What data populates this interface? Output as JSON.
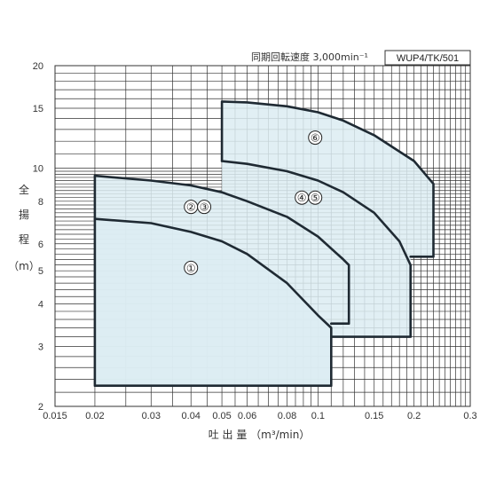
{
  "header": {
    "speed_text": "同期回転速度 3,000min⁻¹",
    "model": "WUP4/TK/501"
  },
  "colors": {
    "fill": "#dcecf2",
    "curve": "#1f2a33",
    "grid": "#333333"
  },
  "chart_data": {
    "type": "area",
    "x_scale": "log",
    "y_scale": "log",
    "xlim": [
      0.015,
      0.3
    ],
    "ylim": [
      2,
      20
    ],
    "xlabel": "吐 出 量 （m³/min）",
    "ylabel": [
      "全",
      "揚",
      "程",
      "（m）"
    ],
    "x_ticks": [
      {
        "value": 0.015,
        "label": "0.015"
      },
      {
        "value": 0.02,
        "label": "0.02"
      },
      {
        "value": 0.03,
        "label": "0.03"
      },
      {
        "value": 0.04,
        "label": "0.04"
      },
      {
        "value": 0.05,
        "label": "0.05"
      },
      {
        "value": 0.06,
        "label": "0.06"
      },
      {
        "value": 0.08,
        "label": "0.08"
      },
      {
        "value": 0.1,
        "label": "0.1"
      },
      {
        "value": 0.15,
        "label": "0.15"
      },
      {
        "value": 0.2,
        "label": "0.2"
      },
      {
        "value": 0.3,
        "label": "0.3"
      }
    ],
    "y_ticks": [
      {
        "value": 2,
        "label": "2"
      },
      {
        "value": 3,
        "label": "3"
      },
      {
        "value": 4,
        "label": "4"
      },
      {
        "value": 5,
        "label": "5"
      },
      {
        "value": 6,
        "label": "6"
      },
      {
        "value": 8,
        "label": "8"
      },
      {
        "value": 10,
        "label": "10"
      },
      {
        "value": 15,
        "label": "15"
      },
      {
        "value": 20,
        "label": "20"
      }
    ],
    "regions": [
      {
        "label": "①",
        "points": [
          [
            0.02,
            2.3
          ],
          [
            0.02,
            7.1
          ],
          [
            0.03,
            6.9
          ],
          [
            0.04,
            6.5
          ],
          [
            0.05,
            6.1
          ],
          [
            0.06,
            5.6
          ],
          [
            0.08,
            4.6
          ],
          [
            0.1,
            3.7
          ],
          [
            0.11,
            3.4
          ],
          [
            0.11,
            2.3
          ]
        ]
      },
      {
        "label": "②③",
        "points": [
          [
            0.02,
            2.3
          ],
          [
            0.02,
            9.5
          ],
          [
            0.03,
            9.2
          ],
          [
            0.04,
            8.9
          ],
          [
            0.05,
            8.5
          ],
          [
            0.06,
            8.0
          ],
          [
            0.08,
            7.2
          ],
          [
            0.1,
            6.3
          ],
          [
            0.12,
            5.4
          ],
          [
            0.125,
            5.2
          ],
          [
            0.125,
            3.5
          ],
          [
            0.11,
            3.5
          ],
          [
            0.11,
            2.3
          ]
        ]
      },
      {
        "label": "④⑤",
        "points": [
          [
            0.05,
            8.5
          ],
          [
            0.05,
            10.5
          ],
          [
            0.06,
            10.3
          ],
          [
            0.08,
            9.8
          ],
          [
            0.1,
            9.2
          ],
          [
            0.12,
            8.5
          ],
          [
            0.15,
            7.4
          ],
          [
            0.18,
            6.1
          ],
          [
            0.195,
            5.2
          ],
          [
            0.195,
            3.2
          ],
          [
            0.11,
            3.2
          ],
          [
            0.11,
            3.5
          ],
          [
            0.125,
            3.5
          ],
          [
            0.125,
            5.2
          ],
          [
            0.12,
            5.4
          ],
          [
            0.1,
            6.3
          ],
          [
            0.08,
            7.2
          ],
          [
            0.06,
            8.0
          ]
        ]
      },
      {
        "label": "⑥",
        "points": [
          [
            0.05,
            10.5
          ],
          [
            0.05,
            15.7
          ],
          [
            0.06,
            15.6
          ],
          [
            0.08,
            15.2
          ],
          [
            0.1,
            14.6
          ],
          [
            0.12,
            13.8
          ],
          [
            0.15,
            12.5
          ],
          [
            0.2,
            10.5
          ],
          [
            0.23,
            9.0
          ],
          [
            0.23,
            5.5
          ],
          [
            0.195,
            5.5
          ],
          [
            0.195,
            5.2
          ],
          [
            0.18,
            6.1
          ],
          [
            0.15,
            7.4
          ],
          [
            0.12,
            8.5
          ],
          [
            0.1,
            9.2
          ],
          [
            0.08,
            9.8
          ],
          [
            0.06,
            10.3
          ]
        ]
      }
    ],
    "curves": [
      {
        "name": "①",
        "points": [
          [
            0.02,
            2.3
          ],
          [
            0.02,
            7.1
          ],
          [
            0.03,
            6.9
          ],
          [
            0.04,
            6.5
          ],
          [
            0.05,
            6.1
          ],
          [
            0.06,
            5.6
          ],
          [
            0.08,
            4.6
          ],
          [
            0.1,
            3.7
          ],
          [
            0.11,
            3.4
          ],
          [
            0.11,
            2.3
          ],
          [
            0.02,
            2.3
          ]
        ]
      },
      {
        "name": "②③",
        "points": [
          [
            0.02,
            9.5
          ],
          [
            0.03,
            9.2
          ],
          [
            0.04,
            8.9
          ],
          [
            0.05,
            8.5
          ],
          [
            0.06,
            8.0
          ],
          [
            0.08,
            7.2
          ],
          [
            0.1,
            6.3
          ],
          [
            0.12,
            5.4
          ],
          [
            0.125,
            5.2
          ],
          [
            0.125,
            3.5
          ],
          [
            0.11,
            3.5
          ]
        ]
      },
      {
        "name": "④⑤",
        "points": [
          [
            0.05,
            10.5
          ],
          [
            0.06,
            10.3
          ],
          [
            0.08,
            9.8
          ],
          [
            0.1,
            9.2
          ],
          [
            0.12,
            8.5
          ],
          [
            0.15,
            7.4
          ],
          [
            0.18,
            6.1
          ],
          [
            0.195,
            5.2
          ],
          [
            0.195,
            3.2
          ],
          [
            0.11,
            3.2
          ]
        ]
      },
      {
        "name": "⑥",
        "points": [
          [
            0.05,
            10.5
          ],
          [
            0.05,
            15.7
          ],
          [
            0.06,
            15.6
          ],
          [
            0.08,
            15.2
          ],
          [
            0.1,
            14.6
          ],
          [
            0.12,
            13.8
          ],
          [
            0.15,
            12.5
          ],
          [
            0.2,
            10.5
          ],
          [
            0.23,
            9.0
          ],
          [
            0.23,
            5.5
          ],
          [
            0.195,
            5.5
          ]
        ]
      },
      {
        "name": "left",
        "points": [
          [
            0.02,
            7.1
          ],
          [
            0.02,
            9.5
          ]
        ]
      }
    ],
    "labels": [
      {
        "text": "①",
        "x": 0.04,
        "y": 5.1
      },
      {
        "text": "②",
        "x": 0.04,
        "y": 7.7
      },
      {
        "text": "③",
        "x": 0.044,
        "y": 7.7
      },
      {
        "text": "④",
        "x": 0.089,
        "y": 8.2
      },
      {
        "text": "⑤",
        "x": 0.098,
        "y": 8.2
      },
      {
        "text": "⑥",
        "x": 0.098,
        "y": 12.3
      }
    ]
  }
}
